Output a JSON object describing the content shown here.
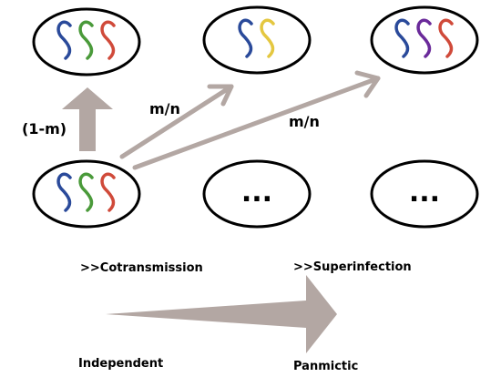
{
  "colors": {
    "arrow": "#b3a7a3",
    "blue": "#2a4a9a",
    "green": "#4a9a3a",
    "red": "#d04a3a",
    "yellow": "#e4c740",
    "purple": "#6a2a9a",
    "outline": "#000000"
  },
  "cells": [
    {
      "name": "cell-top-left",
      "strains": [
        "blue",
        "green",
        "red"
      ]
    },
    {
      "name": "cell-top-middle",
      "strains": [
        "blue",
        "yellow"
      ]
    },
    {
      "name": "cell-top-right",
      "strains": [
        "blue",
        "purple",
        "red"
      ]
    },
    {
      "name": "cell-bottom-left",
      "strains": [
        "blue",
        "green",
        "red"
      ]
    },
    {
      "name": "cell-bottom-middle",
      "strains": [],
      "ellipsis": "..."
    },
    {
      "name": "cell-bottom-right",
      "strains": [],
      "ellipsis": "..."
    }
  ],
  "labels": {
    "retention_rate": "(1-m)",
    "migration_rate_1": "m/n",
    "migration_rate_2": "m/n",
    "cotransmission": ">>Cotransmission",
    "superinfection": ">>Superinfection",
    "independent": "Independent",
    "panmictic": "Panmictic"
  }
}
